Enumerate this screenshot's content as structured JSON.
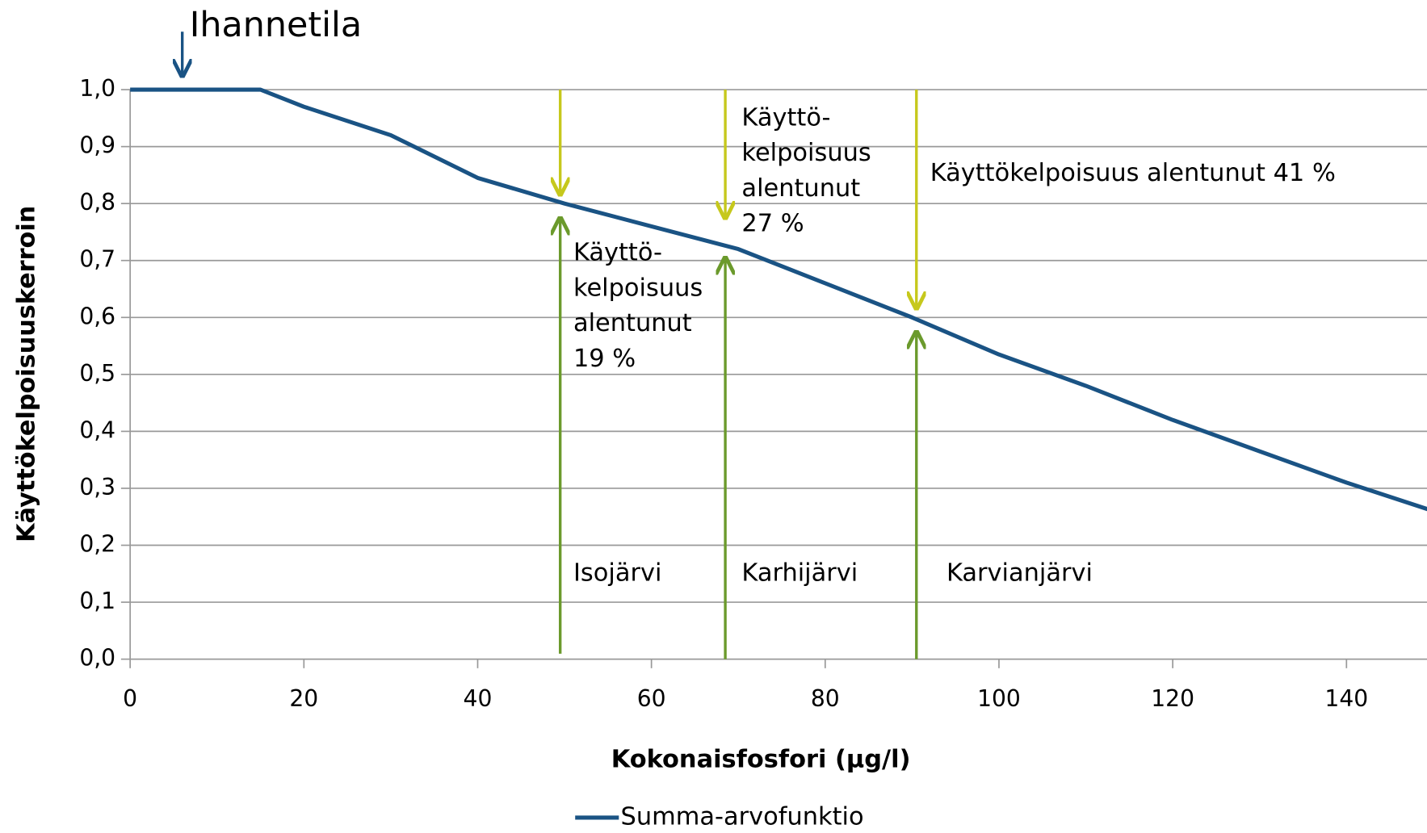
{
  "chart_data": {
    "type": "line",
    "xlabel": "Kokonaisfosfori (µg/l)",
    "ylabel": "Käyttökelpoisuuskerroin",
    "x": [
      0,
      10,
      15,
      20,
      30,
      40,
      50,
      60,
      70,
      80,
      90,
      100,
      110,
      120,
      130,
      140,
      150
    ],
    "series": [
      {
        "name": "Summa-arvofunktio",
        "color": "#1a5384",
        "values": [
          1.0,
          1.0,
          1.0,
          0.97,
          0.92,
          0.845,
          0.8,
          0.76,
          0.72,
          0.66,
          0.6,
          0.535,
          0.48,
          0.42,
          0.365,
          0.31,
          0.26
        ]
      }
    ],
    "xlim": [
      0,
      150
    ],
    "xticks": [
      0,
      20,
      40,
      60,
      80,
      100,
      120,
      140
    ],
    "ylim": [
      0,
      1
    ],
    "yticks": [
      {
        "value": 0,
        "label": "0,0"
      },
      {
        "value": 0.1,
        "label": "0,1"
      },
      {
        "value": 0.2,
        "label": "0,2"
      },
      {
        "value": 0.3,
        "label": "0,3"
      },
      {
        "value": 0.4,
        "label": "0,4"
      },
      {
        "value": 0.5,
        "label": "0,5"
      },
      {
        "value": 0.6,
        "label": "0,6"
      },
      {
        "value": 0.7,
        "label": "0,7"
      },
      {
        "value": 0.8,
        "label": "0,8"
      },
      {
        "value": 0.9,
        "label": "0,9"
      },
      {
        "value": 1.0,
        "label": "1,0"
      }
    ],
    "grid": true,
    "legend": "bottom",
    "ideal": {
      "x": 6,
      "y": 1.0,
      "text": "Ihannetila"
    },
    "annotations": [
      {
        "x": 49.5,
        "y": 0.8,
        "label": "Isojärvi",
        "text": [
          "Käyttö-",
          "kelpoisuus",
          "alentunut",
          "19 %"
        ]
      },
      {
        "x": 68.5,
        "y": 0.73,
        "label": "Karhijärvi",
        "text": [
          "Käyttö-",
          "kelpoisuus",
          "alentunut",
          "27 %"
        ]
      },
      {
        "x": 90.5,
        "y": 0.6,
        "label": "Karvianjärvi",
        "text": [
          "Käyttökelpoisuus alentunut 41 %"
        ]
      }
    ]
  }
}
